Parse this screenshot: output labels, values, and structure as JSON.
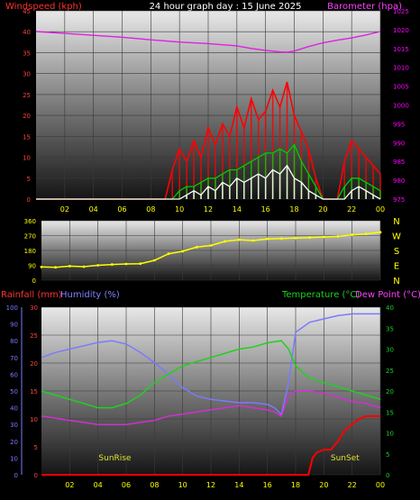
{
  "header": {
    "left": "Windspeed (kph)",
    "center": "24 hour graph day : 15 June 2025",
    "right": "Barometer (hpa)"
  },
  "bottom_header": {
    "rainfall": "Rainfall (mm)",
    "humidity": "Humidity (%)",
    "temperature": "Temperature (°C)",
    "dewpoint": "Dew Point (°C)"
  },
  "colors": {
    "wind_gust": "#ff0000",
    "wind_avg": "#00cc00",
    "wind_low": "#ffffff",
    "barometer": "#e020e0",
    "direction": "#ffff00",
    "rain": "#ff0000",
    "humidity": "#7a7aff",
    "temperature": "#20d020",
    "dewpoint": "#d030d0",
    "sun_label": "#e0e030",
    "left_axis": "#ff4040",
    "right_axis": "#ff00ff"
  },
  "chart_data": [
    {
      "type": "line",
      "name": "wind-barometer",
      "x_ticks": [
        "02",
        "04",
        "06",
        "08",
        "10",
        "12",
        "14",
        "16",
        "18",
        "20",
        "22",
        "00"
      ],
      "xlim": [
        0,
        24
      ],
      "ylabel_left": "Windspeed (kph)",
      "ylim_left": [
        0,
        45
      ],
      "yticks_left": [
        0,
        5,
        10,
        15,
        20,
        25,
        30,
        35,
        40,
        45
      ],
      "ylabel_right": "Barometer (hpa)",
      "ylim_right": [
        975,
        1025
      ],
      "yticks_right": [
        975,
        980,
        985,
        990,
        995,
        1000,
        1005,
        1010,
        1015,
        1020,
        1025
      ],
      "series": [
        {
          "key": "gust",
          "axis": "left",
          "x": [
            0,
            9,
            9.5,
            10,
            10.5,
            11,
            11.5,
            12,
            12.5,
            13,
            13.5,
            14,
            14.5,
            15,
            15.5,
            16,
            16.5,
            17,
            17.5,
            18,
            18.5,
            19,
            19.5,
            20,
            21,
            21.5,
            22,
            22.5,
            23,
            23.5,
            24
          ],
          "y": [
            0,
            0,
            7,
            12,
            9,
            14,
            10,
            17,
            13,
            18,
            15,
            22,
            17,
            24,
            19,
            21,
            26,
            22,
            28,
            20,
            16,
            12,
            5,
            0,
            0,
            9,
            14,
            12,
            10,
            8,
            6
          ]
        },
        {
          "key": "avg",
          "axis": "left",
          "x": [
            0,
            9.5,
            10,
            10.5,
            11,
            11.5,
            12,
            12.5,
            13,
            13.5,
            14,
            14.5,
            15,
            15.5,
            16,
            16.5,
            17,
            17.5,
            18,
            18.5,
            19,
            19.5,
            20,
            21,
            21.5,
            22,
            22.5,
            23,
            23.5,
            24
          ],
          "y": [
            0,
            0,
            2,
            3,
            3,
            4,
            5,
            5,
            6,
            7,
            7,
            8,
            9,
            10,
            11,
            11,
            12,
            11,
            13,
            9,
            6,
            3,
            0,
            0,
            3,
            5,
            5,
            4,
            3,
            2
          ]
        },
        {
          "key": "low",
          "axis": "left",
          "x": [
            0,
            10,
            10.5,
            11,
            11.5,
            12,
            12.5,
            13,
            13.5,
            14,
            14.5,
            15,
            15.5,
            16,
            16.5,
            17,
            17.5,
            18,
            18.5,
            19,
            19.5,
            20,
            21.5,
            22,
            22.5,
            23,
            23.5,
            24
          ],
          "y": [
            0,
            0,
            1,
            2,
            1,
            3,
            2,
            4,
            3,
            5,
            4,
            5,
            6,
            5,
            7,
            6,
            8,
            5,
            4,
            2,
            1,
            0,
            0,
            2,
            3,
            2,
            1,
            0
          ]
        },
        {
          "key": "barometer",
          "axis": "right",
          "x": [
            0,
            2,
            4,
            6,
            8,
            10,
            12,
            14,
            15,
            16,
            17,
            17.5,
            18,
            19,
            20,
            21,
            22,
            23,
            24
          ],
          "y": [
            1019.5,
            1019,
            1018.5,
            1018,
            1017.3,
            1016.7,
            1016.3,
            1015.7,
            1015,
            1014.5,
            1014.1,
            1014,
            1014.3,
            1015.5,
            1016.5,
            1017.2,
            1017.8,
            1018.6,
            1019.5
          ]
        }
      ]
    },
    {
      "type": "line",
      "name": "wind-direction",
      "x_ticks": [
        "02",
        "04",
        "06",
        "08",
        "10",
        "12",
        "14",
        "16",
        "18",
        "20",
        "22",
        "00"
      ],
      "xlim": [
        0,
        24
      ],
      "ylim": [
        0,
        360
      ],
      "yticks": [
        0,
        90,
        180,
        270,
        360
      ],
      "compass_labels": [
        "N",
        "W",
        "S",
        "E",
        "N"
      ],
      "series": [
        {
          "key": "direction",
          "x": [
            0,
            1,
            2,
            3,
            4,
            5,
            6,
            7,
            8,
            9,
            10,
            11,
            12,
            13,
            14,
            15,
            16,
            17,
            18,
            19,
            20,
            21,
            22,
            23,
            24
          ],
          "y": [
            80,
            78,
            85,
            82,
            90,
            95,
            98,
            100,
            120,
            160,
            175,
            200,
            210,
            235,
            245,
            240,
            250,
            252,
            255,
            258,
            262,
            265,
            275,
            280,
            290
          ]
        }
      ]
    },
    {
      "type": "line",
      "name": "temperature-humidity-rain",
      "x_ticks": [
        "02",
        "04",
        "06",
        "08",
        "10",
        "12",
        "14",
        "16",
        "18",
        "20",
        "22",
        "00"
      ],
      "xlim": [
        0,
        24
      ],
      "humidity_ticks": [
        0,
        10,
        20,
        30,
        40,
        50,
        60,
        70,
        80,
        90,
        100
      ],
      "rain_ticks": [
        0,
        5,
        10,
        15,
        20,
        25,
        30
      ],
      "temp_ticks": [
        0,
        5,
        10,
        15,
        20,
        25,
        30,
        35,
        40
      ],
      "ylim_humidity": [
        0,
        100
      ],
      "ylim_rain": [
        0,
        30
      ],
      "ylim_temp": [
        0,
        40
      ],
      "annotations": [
        {
          "text": "SunRise",
          "x": 5.2
        },
        {
          "text": "SunSet",
          "x": 21.5
        }
      ],
      "series": [
        {
          "key": "humidity",
          "axis": "humidity",
          "x": [
            0,
            1,
            2,
            3,
            4,
            5,
            6,
            7,
            8,
            9,
            10,
            11,
            12,
            13,
            14,
            15,
            16,
            16.5,
            17,
            17.5,
            18,
            19,
            20,
            21,
            22,
            23,
            24
          ],
          "y": [
            70,
            73,
            75,
            77,
            79,
            80,
            78,
            73,
            67,
            60,
            52,
            47,
            45,
            44,
            43,
            43,
            42,
            40,
            36,
            55,
            85,
            91,
            93,
            95,
            96,
            96,
            96
          ]
        },
        {
          "key": "temperature",
          "axis": "temp",
          "x": [
            0,
            1,
            2,
            3,
            4,
            5,
            6,
            7,
            8,
            9,
            10,
            11,
            12,
            13,
            14,
            15,
            16,
            17,
            17.5,
            18,
            19,
            20,
            21,
            22,
            23,
            24
          ],
          "y": [
            20,
            19,
            18,
            17,
            16,
            16,
            17,
            19,
            22,
            24,
            26,
            27,
            28,
            29,
            30,
            30.5,
            31.5,
            32,
            30,
            26,
            23,
            22,
            21,
            20,
            19,
            18
          ]
        },
        {
          "key": "dewpoint",
          "axis": "temp",
          "x": [
            0,
            1,
            2,
            3,
            4,
            5,
            6,
            7,
            8,
            9,
            10,
            11,
            12,
            13,
            14,
            15,
            16,
            16.5,
            17,
            17.5,
            18,
            19,
            20,
            21,
            22,
            23,
            24
          ],
          "y": [
            14,
            13.5,
            13,
            12.5,
            12,
            12,
            12,
            12.5,
            13,
            14,
            14.5,
            15,
            15.5,
            16,
            16.5,
            16,
            15.5,
            15,
            14,
            19,
            20,
            20,
            19.5,
            18.5,
            17.5,
            17,
            16
          ]
        },
        {
          "key": "rain",
          "axis": "rain",
          "x": [
            0,
            18.9,
            19,
            19.2,
            19.5,
            20,
            20.5,
            21,
            21.5,
            22,
            22.5,
            23,
            23.5,
            24
          ],
          "y": [
            0,
            0,
            1,
            3,
            4,
            4.5,
            4.5,
            6,
            8,
            9,
            10,
            10.5,
            10.5,
            10.5
          ]
        }
      ]
    }
  ]
}
